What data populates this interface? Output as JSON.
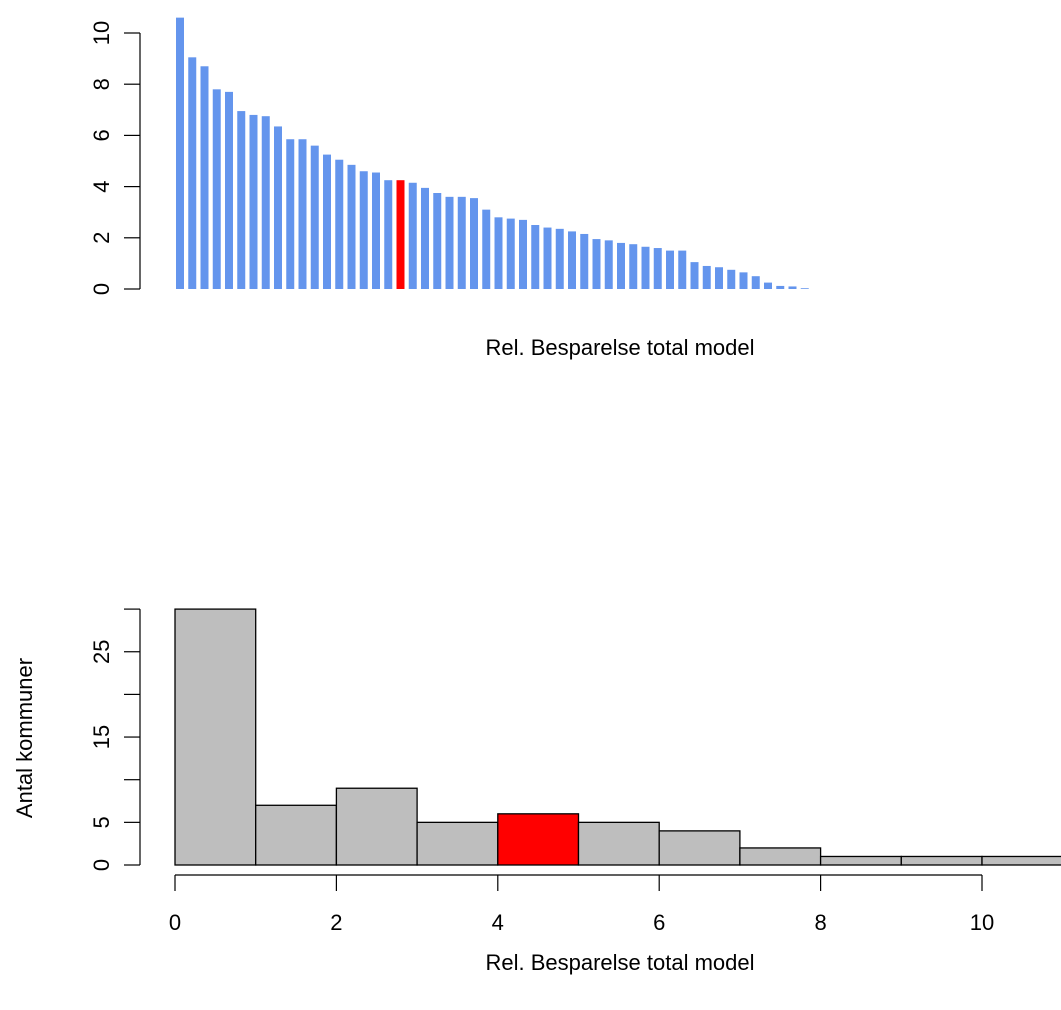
{
  "colors": {
    "bar_default": "#6495ED",
    "bar_highlight": "#FF0000",
    "hist_fill": "#BEBEBE",
    "hist_highlight": "#FF0000",
    "axis": "#000000"
  },
  "chart_data": [
    {
      "type": "bar",
      "xlabel": "Rel. Besparelse total model",
      "ylabel": "",
      "ylim": [
        0,
        10.6
      ],
      "yticks": [
        "0",
        "2",
        "4",
        "6",
        "8",
        "10"
      ],
      "highlight_index": 18,
      "values": [
        10.6,
        9.05,
        8.7,
        7.8,
        7.7,
        6.95,
        6.8,
        6.75,
        6.35,
        5.85,
        5.85,
        5.6,
        5.25,
        5.05,
        4.85,
        4.6,
        4.55,
        4.25,
        4.25,
        4.15,
        3.95,
        3.75,
        3.6,
        3.6,
        3.55,
        3.1,
        2.8,
        2.75,
        2.7,
        2.5,
        2.4,
        2.35,
        2.25,
        2.15,
        1.95,
        1.9,
        1.8,
        1.75,
        1.65,
        1.6,
        1.5,
        1.5,
        1.05,
        0.9,
        0.85,
        0.75,
        0.65,
        0.5,
        0.25,
        0.12,
        0.1,
        0.03
      ]
    },
    {
      "type": "bar",
      "subtype": "histogram",
      "xlabel": "Rel. Besparelse total model",
      "ylabel": "Antal kommuner",
      "bin_edges": [
        0,
        1,
        2,
        3,
        4,
        5,
        6,
        7,
        8,
        9,
        10,
        11
      ],
      "counts": [
        30,
        7,
        9,
        5,
        6,
        5,
        4,
        2,
        1,
        1,
        1
      ],
      "highlight_bin": 4,
      "ylim": [
        0,
        30
      ],
      "yticks": [
        "0",
        "5",
        "15",
        "25"
      ],
      "xticks": [
        "0",
        "2",
        "4",
        "6",
        "8",
        "10"
      ]
    }
  ]
}
